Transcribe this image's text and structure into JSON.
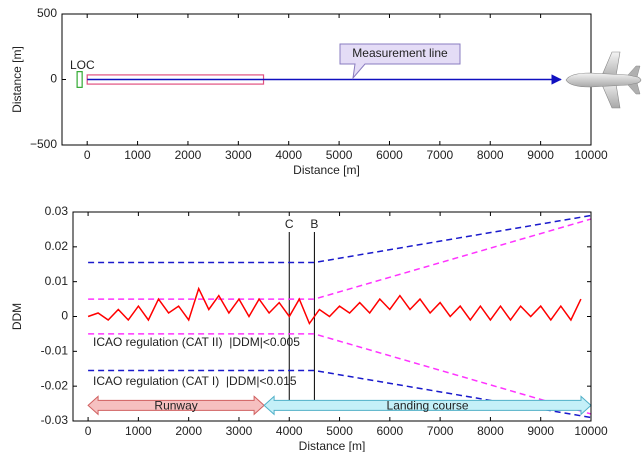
{
  "chart_data": [
    {
      "type": "line",
      "xlabel": "Distance [m]",
      "ylabel": "Distance [m]",
      "xlim": [
        -500,
        10000
      ],
      "ylim": [
        -500,
        500
      ],
      "xticks": [
        0,
        1000,
        2000,
        3000,
        4000,
        5000,
        6000,
        7000,
        8000,
        9000,
        10000
      ],
      "yticks": [
        {
          "value": -500,
          "label": "−500"
        },
        0,
        500
      ],
      "regions": [
        {
          "x": [
            -200,
            -100
          ],
          "y": [
            -60,
            60
          ],
          "color": "#33aa33"
        },
        {
          "x": [
            0,
            3500
          ],
          "y": [
            -35,
            35
          ],
          "color": "#e05080"
        }
      ],
      "series": [
        {
          "color": "#1010c0",
          "x": [
            0,
            9400
          ],
          "values": [
            0,
            0
          ],
          "arrow": true
        }
      ],
      "annotations": [
        "LOC",
        "Measurement line"
      ]
    },
    {
      "type": "line",
      "xlabel": "Distance [m]",
      "ylabel": "DDM",
      "xlim": [
        -300,
        10000
      ],
      "ylim": [
        -0.03,
        0.03
      ],
      "xticks": [
        0,
        1000,
        2000,
        3000,
        4000,
        5000,
        6000,
        7000,
        8000,
        9000,
        10000
      ],
      "yticks": [
        -0.03,
        -0.02,
        -0.01,
        0,
        0.01,
        0.02,
        0.03
      ],
      "series": [
        {
          "color": "#1a1acc",
          "dash": true,
          "x": [
            0,
            4500,
            10000
          ],
          "values": [
            0.0155,
            0.0155,
            0.029
          ]
        },
        {
          "color": "#1a1acc",
          "dash": true,
          "x": [
            0,
            4500,
            10000
          ],
          "values": [
            -0.0155,
            -0.0155,
            -0.029
          ]
        },
        {
          "color": "#ff33ff",
          "dash": true,
          "x": [
            0,
            4500,
            10000
          ],
          "values": [
            0.005,
            0.005,
            0.028
          ]
        },
        {
          "color": "#ff33ff",
          "dash": true,
          "x": [
            0,
            4500,
            10000
          ],
          "values": [
            -0.005,
            -0.005,
            -0.028
          ]
        },
        {
          "color": "#ff0000",
          "x": [
            0,
            200,
            400,
            600,
            800,
            1000,
            1200,
            1400,
            1600,
            1800,
            2000,
            2200,
            2400,
            2600,
            2800,
            3000,
            3200,
            3400,
            3600,
            3800,
            4000,
            4200,
            4400,
            4600,
            4800,
            5000,
            5200,
            5400,
            5600,
            5800,
            6000,
            6200,
            6400,
            6600,
            6800,
            7000,
            7200,
            7400,
            7600,
            7800,
            8000,
            8200,
            8400,
            8600,
            8800,
            9000,
            9200,
            9400,
            9600,
            9800
          ],
          "values": [
            0,
            0.001,
            -0.001,
            0.002,
            -0.001,
            0.003,
            -0.001,
            0.005,
            0.001,
            0.003,
            -0.001,
            0.008,
            0.002,
            0.006,
            0.001,
            0.005,
            0,
            0.005,
            0.001,
            0.004,
            0,
            0.005,
            -0.002,
            0.002,
            0,
            0.003,
            0.001,
            0.004,
            0.001,
            0.005,
            0.002,
            0.006,
            0.002,
            0.005,
            0.001,
            0.004,
            0,
            0.003,
            -0.001,
            0.003,
            -0.001,
            0.003,
            -0.001,
            0.003,
            0,
            0.003,
            -0.001,
            0.003,
            -0.001,
            0.005
          ]
        }
      ],
      "vlines": [
        {
          "label": "C",
          "value": 4000,
          "ylow": -0.026
        },
        {
          "label": "B",
          "value": 4500,
          "ylow": -0.026
        }
      ],
      "ranges": [
        {
          "label": "Runway",
          "x": [
            0,
            3500
          ],
          "value": -0.0255,
          "color": "#f6c0c0",
          "edge": "#d06060"
        },
        {
          "label": "Landing course",
          "x": [
            3500,
            10000
          ],
          "value": -0.0255,
          "color": "#c4f0f8",
          "edge": "#50b0c8"
        }
      ],
      "annotations": [
        "ICAO regulation (CAT II)  |DDM|<0.005",
        "ICAO regulation (CAT I)  |DDM|<0.015"
      ]
    }
  ]
}
